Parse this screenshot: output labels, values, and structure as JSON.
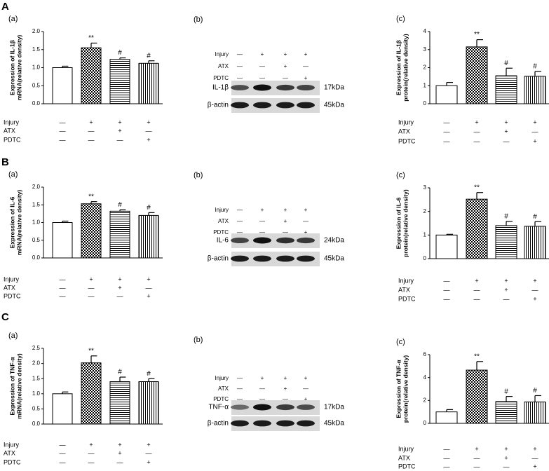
{
  "figure": {
    "rows": [
      {
        "letter": "A",
        "blot": {
          "label": "(b)",
          "conditions": [
            {
              "name": "Injury",
              "marks": [
                "—",
                "+",
                "+",
                "+"
              ]
            },
            {
              "name": "ATX",
              "marks": [
                "—",
                "—",
                "+",
                "—"
              ]
            },
            {
              "name": "PDTC",
              "marks": [
                "—",
                "—",
                "—",
                "+"
              ]
            }
          ],
          "bands": [
            {
              "name": "IL-1β",
              "size": "17kDa"
            },
            {
              "name": "β-actin",
              "size": "45kDa"
            }
          ]
        }
      },
      {
        "letter": "B",
        "blot": {
          "label": "(b)",
          "conditions": [
            {
              "name": "Injury",
              "marks": [
                "—",
                "+",
                "+",
                "+"
              ]
            },
            {
              "name": "ATX",
              "marks": [
                "—",
                "—",
                "+",
                "—"
              ]
            },
            {
              "name": "PDTC",
              "marks": [
                "—",
                "—",
                "—",
                "+"
              ]
            }
          ],
          "bands": [
            {
              "name": "IL-6",
              "size": "24kDa"
            },
            {
              "name": "β-actin",
              "size": "45kDa"
            }
          ]
        }
      },
      {
        "letter": "C",
        "blot": {
          "label": "(b)",
          "conditions": [
            {
              "name": "Injury",
              "marks": [
                "—",
                "+",
                "+",
                "+"
              ]
            },
            {
              "name": "ATX",
              "marks": [
                "—",
                "—",
                "+",
                "—"
              ]
            },
            {
              "name": "PDTC",
              "marks": [
                "—",
                "—",
                "—",
                "+"
              ]
            }
          ],
          "bands": [
            {
              "name": "TNF-α",
              "size": "17kDa"
            },
            {
              "name": "β-actin",
              "size": "45kDa"
            }
          ]
        }
      }
    ]
  },
  "chart_data": [
    {
      "type": "bar",
      "label": "(a)",
      "ylabel": [
        "Expression of IL-1β",
        "mRNA(relative density)"
      ],
      "values": [
        1.0,
        1.55,
        1.23,
        1.12
      ],
      "errors": [
        0.04,
        0.13,
        0.04,
        0.07
      ],
      "annotations": [
        null,
        "**",
        "#",
        "#"
      ],
      "patterns": [
        "none",
        "checker",
        "horizontal",
        "vertical"
      ],
      "color": "#000000",
      "ylim": [
        0,
        2.0
      ],
      "yticks": [
        {
          "value": 0,
          "label": "0.0"
        },
        0.5,
        {
          "value": 1.0,
          "label": "1.0"
        },
        1.5,
        {
          "value": 2.0,
          "label": "2.0"
        }
      ],
      "conditions": [
        {
          "name": "Injury",
          "marks": [
            "—",
            "+",
            "+",
            "+"
          ]
        },
        {
          "name": "ATX",
          "marks": [
            "—",
            "—",
            "+",
            "—"
          ]
        },
        {
          "name": "PDTC",
          "marks": [
            "—",
            "—",
            "—",
            "+"
          ]
        }
      ]
    },
    {
      "type": "bar",
      "label": "(c)",
      "ylabel": [
        "Expression of IL-1β",
        "protein(relative density)"
      ],
      "values": [
        1.0,
        3.15,
        1.55,
        1.52
      ],
      "errors": [
        0.18,
        0.4,
        0.42,
        0.27
      ],
      "annotations": [
        null,
        "**",
        "#",
        "#"
      ],
      "patterns": [
        "none",
        "checker",
        "horizontal",
        "vertical"
      ],
      "color": "#000000",
      "ylim": [
        0,
        4
      ],
      "yticks": [
        0,
        1,
        2,
        3,
        4
      ],
      "conditions": [
        {
          "name": "Injury",
          "marks": [
            "—",
            "+",
            "+",
            "+"
          ]
        },
        {
          "name": "ATX",
          "marks": [
            "—",
            "—",
            "+",
            "—"
          ]
        },
        {
          "name": "PDTC",
          "marks": [
            "—",
            "—",
            "—",
            "+"
          ]
        }
      ]
    },
    {
      "type": "bar",
      "label": "(a)",
      "ylabel": [
        "Expression of IL-6",
        "mRNA(relative density)"
      ],
      "values": [
        1.0,
        1.53,
        1.32,
        1.2
      ],
      "errors": [
        0.04,
        0.06,
        0.04,
        0.08
      ],
      "annotations": [
        null,
        "**",
        "#",
        "#"
      ],
      "patterns": [
        "none",
        "checker",
        "horizontal",
        "vertical"
      ],
      "color": "#000000",
      "ylim": [
        0,
        2.0
      ],
      "yticks": [
        {
          "value": 0,
          "label": "0.0"
        },
        0.5,
        {
          "value": 1.0,
          "label": "1.0"
        },
        1.5,
        {
          "value": 2.0,
          "label": "2.0"
        }
      ],
      "conditions": [
        {
          "name": "Injury",
          "marks": [
            "—",
            "+",
            "+",
            "+"
          ]
        },
        {
          "name": "ATX",
          "marks": [
            "—",
            "—",
            "+",
            "—"
          ]
        },
        {
          "name": "PDTC",
          "marks": [
            "—",
            "—",
            "—",
            "+"
          ]
        }
      ]
    },
    {
      "type": "bar",
      "label": "(c)",
      "ylabel": [
        "Expression of IL-6",
        "protein(relative density)"
      ],
      "values": [
        1.0,
        2.52,
        1.4,
        1.37
      ],
      "errors": [
        0.03,
        0.28,
        0.18,
        0.2
      ],
      "annotations": [
        null,
        "**",
        "#",
        "#"
      ],
      "patterns": [
        "none",
        "checker",
        "horizontal",
        "vertical"
      ],
      "color": "#000000",
      "ylim": [
        0,
        3
      ],
      "yticks": [
        0,
        1,
        2,
        3
      ],
      "conditions": [
        {
          "name": "Injury",
          "marks": [
            "—",
            "+",
            "+",
            "+"
          ]
        },
        {
          "name": "ATX",
          "marks": [
            "—",
            "—",
            "+",
            "—"
          ]
        },
        {
          "name": "PDTC",
          "marks": [
            "—",
            "—",
            "—",
            "+"
          ]
        }
      ]
    },
    {
      "type": "bar",
      "label": "(a)",
      "ylabel": [
        "Expression of TNF-α",
        "mRNA(relative density)"
      ],
      "values": [
        1.0,
        2.02,
        1.4,
        1.4
      ],
      "errors": [
        0.06,
        0.23,
        0.15,
        0.1
      ],
      "annotations": [
        null,
        "**",
        "#",
        "#"
      ],
      "patterns": [
        "none",
        "checker",
        "horizontal",
        "vertical"
      ],
      "color": "#000000",
      "ylim": [
        0,
        2.5
      ],
      "yticks": [
        {
          "value": 0,
          "label": "0.0"
        },
        0.5,
        {
          "value": 1.0,
          "label": "1.0"
        },
        1.5,
        {
          "value": 2.0,
          "label": "2.0"
        },
        2.5
      ],
      "conditions": [
        {
          "name": "Injury",
          "marks": [
            "—",
            "+",
            "+",
            "+"
          ]
        },
        {
          "name": "ATX",
          "marks": [
            "—",
            "—",
            "+",
            "—"
          ]
        },
        {
          "name": "PDTC",
          "marks": [
            "—",
            "—",
            "—",
            "+"
          ]
        }
      ]
    },
    {
      "type": "bar",
      "label": "(c)",
      "ylabel": [
        "Expression of TNF-α",
        "protein(relative density)"
      ],
      "values": [
        1.0,
        4.65,
        1.9,
        1.87
      ],
      "errors": [
        0.2,
        0.75,
        0.45,
        0.55
      ],
      "annotations": [
        null,
        "**",
        "#",
        "#"
      ],
      "patterns": [
        "none",
        "checker",
        "horizontal",
        "vertical"
      ],
      "color": "#000000",
      "ylim": [
        0,
        6
      ],
      "yticks": [
        0,
        2,
        4,
        6
      ],
      "conditions": [
        {
          "name": "Injury",
          "marks": [
            "—",
            "+",
            "+",
            "+"
          ]
        },
        {
          "name": "ATX",
          "marks": [
            "—",
            "—",
            "+",
            "—"
          ]
        },
        {
          "name": "PDTC",
          "marks": [
            "—",
            "—",
            "—",
            "+"
          ]
        }
      ]
    }
  ]
}
